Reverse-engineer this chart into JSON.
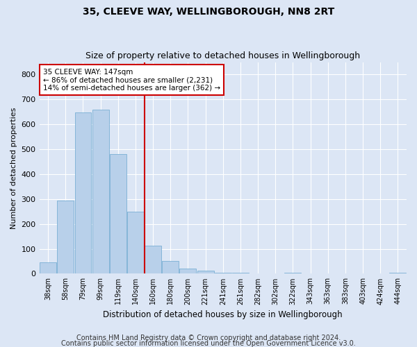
{
  "title": "35, CLEEVE WAY, WELLINGBOROUGH, NN8 2RT",
  "subtitle": "Size of property relative to detached houses in Wellingborough",
  "xlabel": "Distribution of detached houses by size in Wellingborough",
  "ylabel": "Number of detached properties",
  "categories": [
    "38sqm",
    "58sqm",
    "79sqm",
    "99sqm",
    "119sqm",
    "140sqm",
    "160sqm",
    "180sqm",
    "200sqm",
    "221sqm",
    "241sqm",
    "261sqm",
    "282sqm",
    "302sqm",
    "322sqm",
    "343sqm",
    "363sqm",
    "383sqm",
    "403sqm",
    "424sqm",
    "444sqm"
  ],
  "bar_values": [
    47,
    295,
    648,
    660,
    480,
    248,
    113,
    52,
    20,
    12,
    5,
    3,
    0,
    0,
    5,
    0,
    0,
    0,
    0,
    0,
    5
  ],
  "bar_color": "#b8d0ea",
  "bar_edge_color": "#7aafd4",
  "vline_color": "#cc0000",
  "annotation_text": "35 CLEEVE WAY: 147sqm\n← 86% of detached houses are smaller (2,231)\n14% of semi-detached houses are larger (362) →",
  "annotation_box_color": "#ffffff",
  "annotation_box_edge_color": "#cc0000",
  "ylim": [
    0,
    850
  ],
  "yticks": [
    0,
    100,
    200,
    300,
    400,
    500,
    600,
    700,
    800
  ],
  "footer_line1": "Contains HM Land Registry data © Crown copyright and database right 2024.",
  "footer_line2": "Contains public sector information licensed under the Open Government Licence v3.0.",
  "background_color": "#dce6f5",
  "title_fontsize": 10,
  "subtitle_fontsize": 9,
  "footer_fontsize": 7
}
